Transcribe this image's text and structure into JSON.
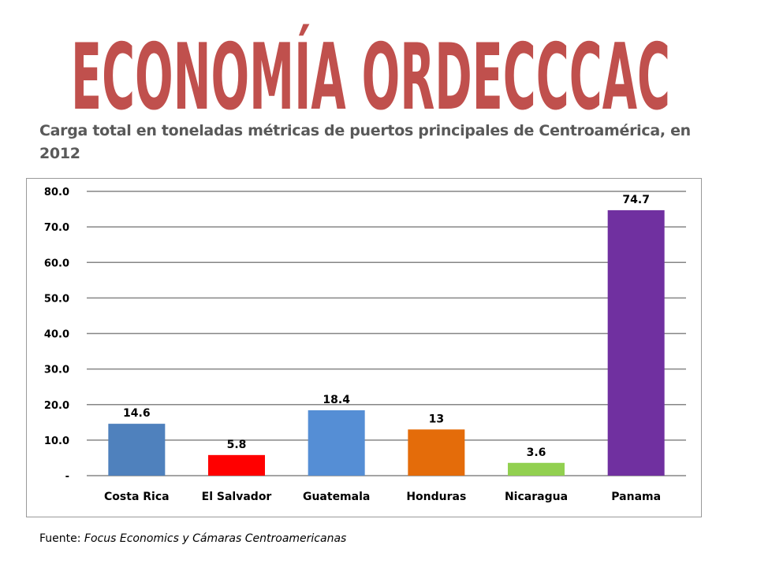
{
  "banner": {
    "text": "ECONOMÍA ORDECCCAC",
    "fill": "#c0504d",
    "outline": "#ffffff"
  },
  "subtitle": "Carga total en toneladas métricas de puertos principales de Centroamérica, en 2012",
  "source": {
    "prefix": "Fuente: ",
    "text": "Focus Economics y Cámaras Centroamericanas"
  },
  "chart_data": {
    "type": "bar",
    "title": "",
    "xlabel": "",
    "ylabel": "",
    "ylim": [
      0,
      80
    ],
    "grid": true,
    "yticks": [
      "-",
      "10.0",
      "20.0",
      "30.0",
      "40.0",
      "50.0",
      "60.0",
      "70.0",
      "80.0"
    ],
    "categories": [
      "Costa Rica",
      "El Salvador",
      "Guatemala",
      "Honduras",
      "Nicaragua",
      "Panama"
    ],
    "values": [
      14.6,
      5.8,
      18.4,
      13,
      3.6,
      74.7
    ],
    "data_labels": [
      "14.6",
      "5.8",
      "18.4",
      "13",
      "3.6",
      "74.7"
    ],
    "colors": [
      "#4f81bd",
      "#ff0000",
      "#558ed5",
      "#e46c0a",
      "#92d050",
      "#7030a0"
    ]
  }
}
